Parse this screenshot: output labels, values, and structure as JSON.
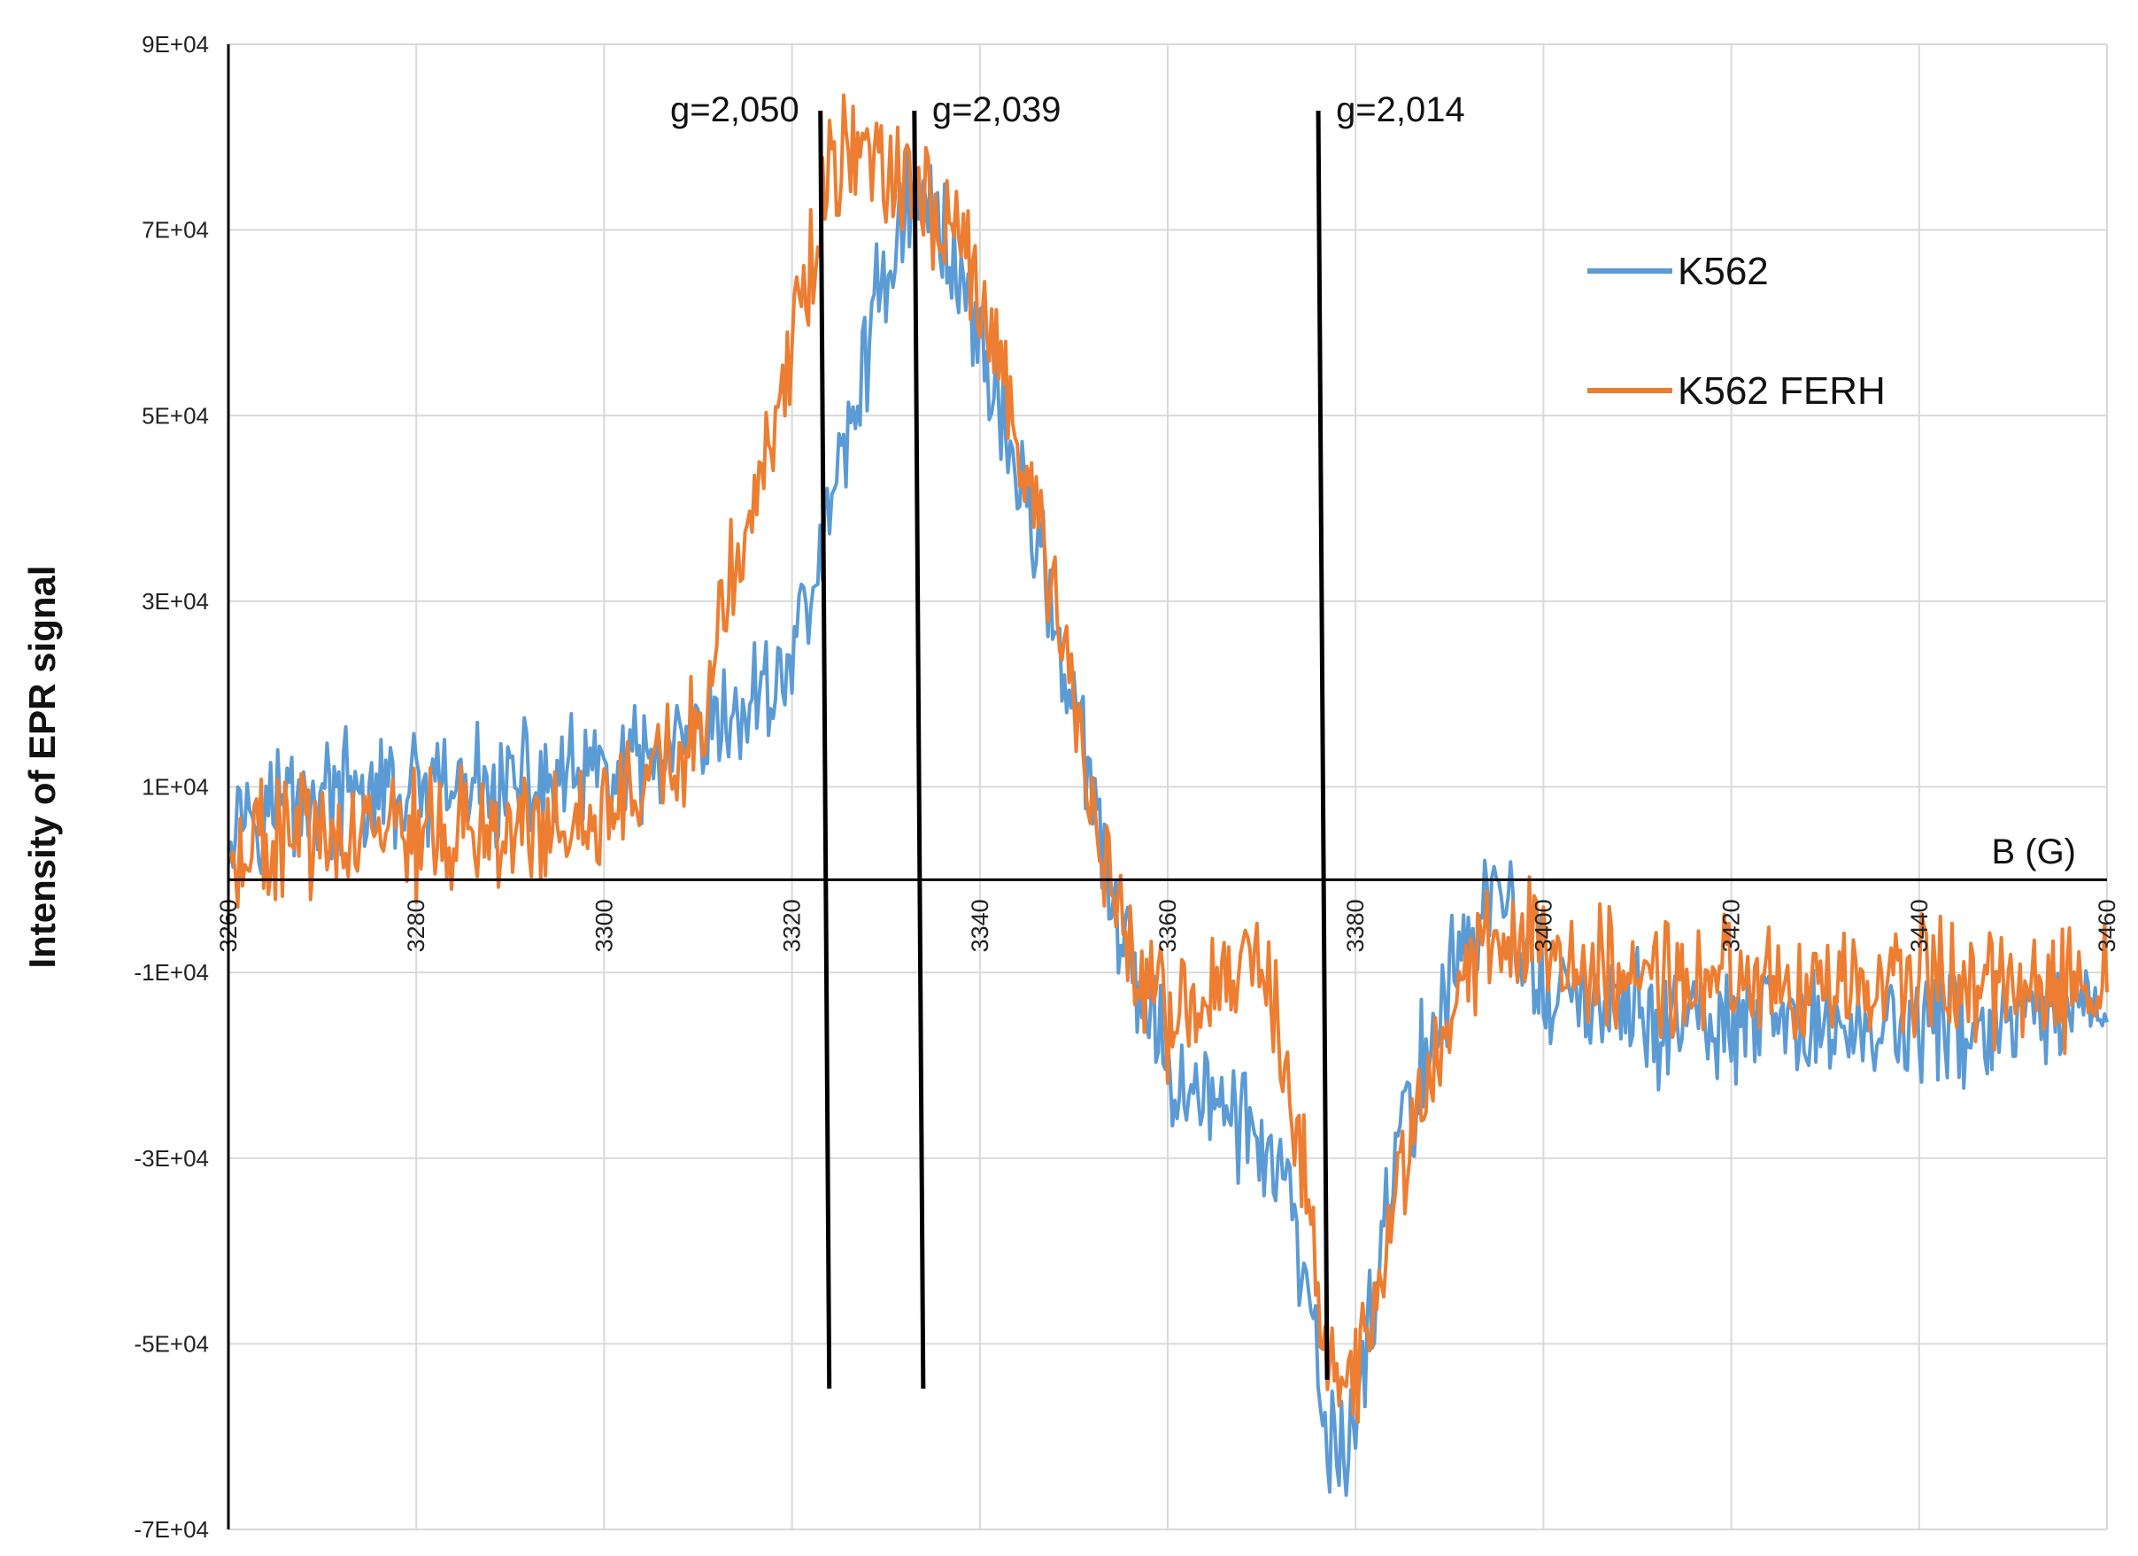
{
  "chart_data": {
    "type": "line",
    "title": "",
    "xlabel": "B (G)",
    "ylabel": "Intensity of EPR signal",
    "xlim": [
      3260,
      3460
    ],
    "ylim": [
      -70000,
      90000
    ],
    "grid": true,
    "legend_position": "top-right",
    "x_ticks": [
      "3260",
      "3280",
      "3300",
      "3320",
      "3340",
      "3360",
      "3380",
      "3400",
      "3420",
      "3440",
      "3460"
    ],
    "y_ticks": [
      "9E+04",
      "7E+04",
      "5E+04",
      "3E+04",
      "1E+04",
      "-1E+04",
      "-3E+04",
      "-5E+04",
      "-7E+04"
    ],
    "series": [
      {
        "name": "K562",
        "color": "#5b9bd5",
        "x": [
          3260,
          3270,
          3280,
          3290,
          3300,
          3305,
          3310,
          3315,
          3320,
          3323,
          3326,
          3329,
          3332,
          3335,
          3338,
          3341,
          3344,
          3347,
          3350,
          3353,
          3356,
          3360,
          3365,
          3370,
          3373,
          3375,
          3377,
          3379,
          3381,
          3383,
          3386,
          3390,
          3395,
          3400,
          3410,
          3420,
          3430,
          3440,
          3450,
          3460
        ],
        "y": [
          8000,
          9000,
          9000,
          10000,
          11000,
          12000,
          14000,
          18000,
          24000,
          35000,
          48000,
          62000,
          73000,
          72000,
          65000,
          55000,
          44000,
          33000,
          18000,
          3000,
          -10000,
          -20000,
          -24000,
          -28000,
          -35000,
          -48000,
          -60000,
          -62000,
          -52000,
          -36000,
          -24000,
          -10000,
          -1000,
          -12000,
          -15000,
          -16000,
          -16000,
          -16000,
          -16000,
          -15000
        ]
      },
      {
        "name": "K562 FERH",
        "color": "#ed7d31",
        "x": [
          3260,
          3270,
          3280,
          3290,
          3300,
          3305,
          3310,
          3312,
          3315,
          3318,
          3321,
          3324,
          3327,
          3330,
          3333,
          3336,
          3339,
          3342,
          3345,
          3348,
          3351,
          3354,
          3357,
          3360,
          3363,
          3366,
          3369,
          3372,
          3374,
          3376,
          3378,
          3380,
          3383,
          3386,
          3390,
          3395,
          3400,
          3410,
          3420,
          3430,
          3440,
          3450,
          3460
        ],
        "y": [
          4000,
          5000,
          5000,
          5000,
          6000,
          10000,
          16000,
          28000,
          38000,
          48000,
          62000,
          76000,
          78000,
          77000,
          76000,
          72000,
          66000,
          57000,
          44000,
          30000,
          14000,
          -2000,
          -12000,
          -15000,
          -14000,
          -10000,
          -8000,
          -16000,
          -28000,
          -45000,
          -55000,
          -54000,
          -40000,
          -26000,
          -14000,
          -5000,
          -8000,
          -10000,
          -10000,
          -11000,
          -11000,
          -12000,
          -11000
        ]
      }
    ],
    "markers": [
      {
        "label": "g=2,050",
        "x": 3323.5
      },
      {
        "label": "g=2,039",
        "x": 3333.5
      },
      {
        "label": "g=2,014",
        "x": 3376.5
      }
    ]
  }
}
